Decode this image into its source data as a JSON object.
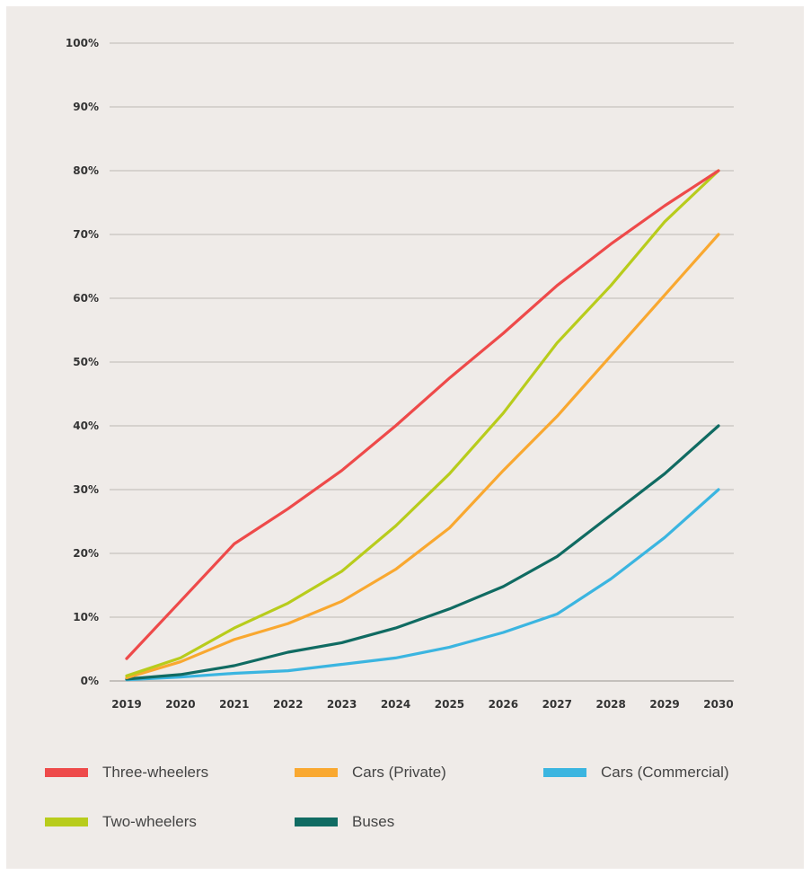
{
  "chart_data": {
    "type": "line",
    "title": "",
    "xlabel": "",
    "ylabel": "",
    "x": [
      "2019",
      "2020",
      "2021",
      "2022",
      "2023",
      "2024",
      "2025",
      "2026",
      "2027",
      "2028",
      "2029",
      "2030"
    ],
    "ylim": [
      0,
      100
    ],
    "yticks": [
      "0%",
      "10%",
      "20%",
      "30%",
      "40%",
      "50%",
      "60%",
      "70%",
      "80%",
      "90%",
      "100%"
    ],
    "grid": true,
    "legend_position": "bottom",
    "series": [
      {
        "name": "Three-wheelers",
        "color": "#ee4a4a",
        "values": [
          3.5,
          12.5,
          21.5,
          27,
          33,
          40,
          47.5,
          54.5,
          62,
          68.5,
          74.5,
          80
        ]
      },
      {
        "name": "Cars (Private)",
        "color": "#f9a830",
        "values": [
          0.5,
          3,
          6.5,
          9,
          12.5,
          17.5,
          24,
          33,
          41.5,
          51,
          60.5,
          70
        ]
      },
      {
        "name": "Cars (Commercial)",
        "color": "#3bb5e0",
        "values": [
          0.2,
          0.6,
          1.2,
          1.6,
          2.6,
          3.6,
          5.3,
          7.6,
          10.5,
          16,
          22.5,
          30
        ]
      },
      {
        "name": "Two-wheelers",
        "color": "#b8cc1c",
        "values": [
          0.8,
          3.6,
          8.3,
          12.2,
          17.2,
          24.3,
          32.5,
          42,
          53,
          62,
          72,
          80
        ]
      },
      {
        "name": "Buses",
        "color": "#106b62",
        "values": [
          0.3,
          1,
          2.4,
          4.5,
          6,
          8.3,
          11.3,
          14.8,
          19.5,
          26,
          32.5,
          40
        ]
      }
    ]
  }
}
